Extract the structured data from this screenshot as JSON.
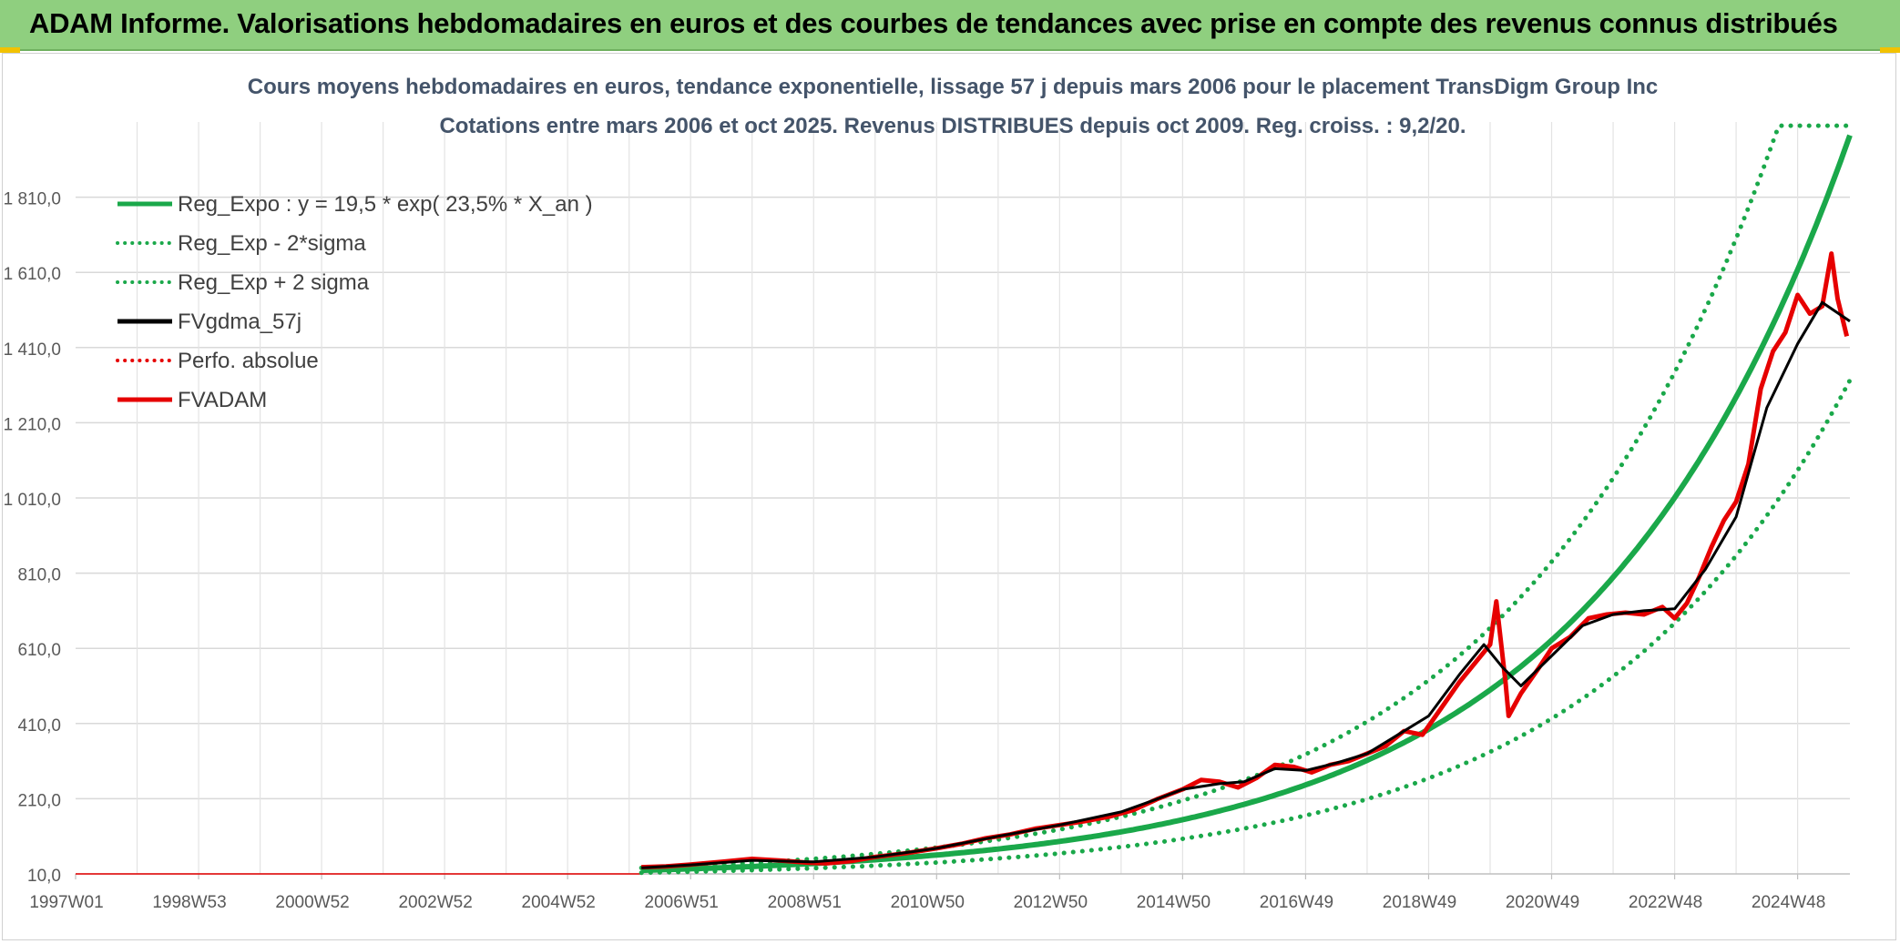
{
  "banner": {
    "title": "ADAM Informe. Valorisations hebdomadaires en euros et des courbes de tendances avec prise en compte des revenus connus distribués",
    "bg_color": "#8fcf7f"
  },
  "chart_data": {
    "type": "line",
    "title": "Cours moyens hebdomadaires en euros, tendance exponentielle, lissage 57 j depuis mars 2006 pour le placement TransDigm Group Inc",
    "subtitle": "Cotations entre mars 2006 et oct 2025. Revenus DISTRIBUES depuis oct 2009. Reg. croiss. : 9,2/20.",
    "xlabel": "",
    "ylabel": "",
    "x_ticks": [
      "1997W01",
      "1998W53",
      "2000W52",
      "2002W52",
      "2004W52",
      "2006W51",
      "2008W51",
      "2010W50",
      "2012W50",
      "2014W50",
      "2016W49",
      "2018W49",
      "2020W49",
      "2022W48",
      "2024W48"
    ],
    "x_tick_years": [
      1997.0,
      1999.0,
      2001.0,
      2003.0,
      2005.0,
      2007.0,
      2009.0,
      2011.0,
      2013.0,
      2015.0,
      2017.0,
      2019.0,
      2021.0,
      2023.0,
      2025.0
    ],
    "xlim": [
      1997.0,
      2025.85
    ],
    "y_ticks": [
      "10,0",
      "210,0",
      "410,0",
      "610,0",
      "810,0",
      "1 010,0",
      "1 210,0",
      "1 410,0",
      "1 610,0",
      "1 810,0"
    ],
    "ylim": [
      10,
      2010
    ],
    "grid": true,
    "legend_position": "top-left",
    "legend": [
      {
        "label": "Reg_Expo : y = 19,5 * exp( 23,5% *  X_an )",
        "color": "#1aa84a",
        "style": "solid"
      },
      {
        "label": "Reg_Exp - 2*sigma",
        "color": "#1aa84a",
        "style": "dotted"
      },
      {
        "label": "Reg_Exp + 2 sigma",
        "color": "#1aa84a",
        "style": "dotted"
      },
      {
        "label": "FVgdma_57j",
        "color": "#000000",
        "style": "solid"
      },
      {
        "label": "Perfo. absolue",
        "color": "#e60000",
        "style": "dotted"
      },
      {
        "label": "FVADAM",
        "color": "#e60000",
        "style": "solid"
      }
    ],
    "regression": {
      "a": 19.5,
      "rate": 0.235,
      "start_year": 2006.2,
      "plus_sigma_factor": 1.33,
      "minus_sigma_factor": 0.67,
      "plus_sigma_cap": 2000,
      "end_year": 2025.85
    },
    "baseline": {
      "value": 10,
      "x_start": 1997.0,
      "x_end": 2006.2
    },
    "series": [
      {
        "name": "FVADAM",
        "color": "#e60000",
        "x": [
          2006.2,
          2006.6,
          2007.0,
          2007.5,
          2008.0,
          2008.5,
          2008.9,
          2009.2,
          2009.6,
          2010.0,
          2010.5,
          2011.0,
          2011.4,
          2011.8,
          2012.2,
          2012.6,
          2013.0,
          2013.4,
          2013.8,
          2014.2,
          2014.6,
          2015.0,
          2015.3,
          2015.6,
          2015.9,
          2016.2,
          2016.5,
          2016.8,
          2017.1,
          2017.4,
          2017.7,
          2018.0,
          2018.3,
          2018.6,
          2018.9,
          2019.2,
          2019.5,
          2019.8,
          2020.0,
          2020.1,
          2020.25,
          2020.3,
          2020.5,
          2020.8,
          2021.0,
          2021.3,
          2021.6,
          2021.9,
          2022.2,
          2022.5,
          2022.8,
          2023.0,
          2023.2,
          2023.4,
          2023.6,
          2023.8,
          2024.0,
          2024.2,
          2024.4,
          2024.6,
          2024.8,
          2025.0,
          2025.2,
          2025.4,
          2025.55,
          2025.65,
          2025.8
        ],
        "values": [
          28,
          30,
          35,
          42,
          50,
          45,
          40,
          38,
          44,
          55,
          65,
          78,
          90,
          105,
          115,
          130,
          140,
          150,
          162,
          180,
          210,
          235,
          260,
          255,
          240,
          265,
          300,
          295,
          280,
          300,
          310,
          330,
          350,
          390,
          380,
          450,
          520,
          580,
          620,
          735,
          520,
          430,
          490,
          560,
          610,
          640,
          690,
          700,
          705,
          700,
          720,
          690,
          730,
          800,
          880,
          950,
          1000,
          1100,
          1300,
          1400,
          1450,
          1550,
          1500,
          1520,
          1660,
          1540,
          1440
        ]
      },
      {
        "name": "FVgdma_57j",
        "color": "#000000",
        "x": [
          2006.2,
          2007.0,
          2008.0,
          2009.0,
          2010.0,
          2011.0,
          2012.0,
          2013.0,
          2014.0,
          2014.6,
          2015.0,
          2015.6,
          2016.0,
          2016.5,
          2017.0,
          2017.5,
          2018.0,
          2018.5,
          2019.0,
          2019.5,
          2019.9,
          2020.2,
          2020.5,
          2021.0,
          2021.5,
          2022.0,
          2022.5,
          2023.0,
          2023.5,
          2024.0,
          2024.5,
          2025.0,
          2025.4,
          2025.85
        ],
        "values": [
          26,
          34,
          46,
          42,
          55,
          78,
          110,
          140,
          175,
          210,
          235,
          250,
          255,
          290,
          285,
          305,
          330,
          380,
          430,
          540,
          620,
          560,
          510,
          590,
          670,
          700,
          710,
          715,
          820,
          960,
          1250,
          1420,
          1530,
          1480
        ]
      }
    ]
  }
}
